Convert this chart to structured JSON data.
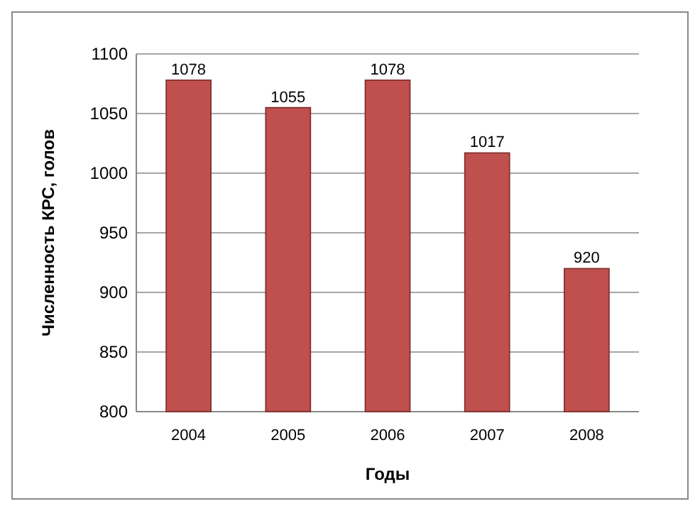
{
  "chart_data": {
    "type": "bar",
    "xlabel": "Годы",
    "ylabel": "Численность КРС, голов",
    "categories": [
      "2004",
      "2005",
      "2006",
      "2007",
      "2008"
    ],
    "values": [
      1078,
      1055,
      1078,
      1017,
      920
    ],
    "color": "#c0504d",
    "ylim": [
      800,
      1100
    ],
    "yticks": [
      800,
      850,
      900,
      950,
      1000,
      1050,
      1100
    ],
    "grid": "y",
    "data_labels": true
  }
}
